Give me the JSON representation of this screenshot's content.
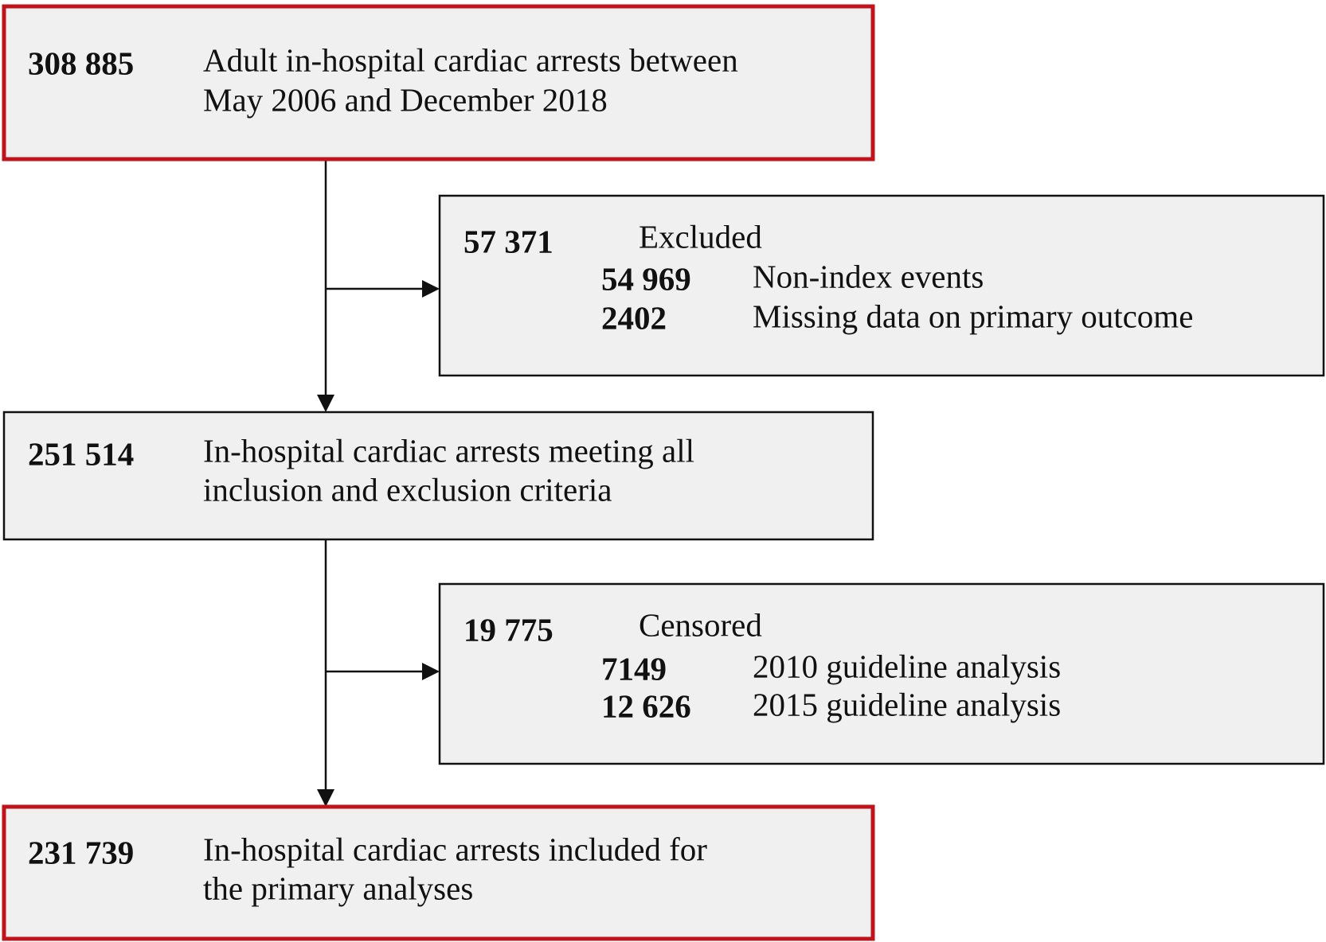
{
  "nodes": [
    {
      "count": "308 885",
      "label": [
        "Adult in-hospital cardiac arrests between",
        "May 2006 and December 2018"
      ]
    },
    {
      "count": "57 371",
      "label": "Excluded",
      "items": [
        {
          "count": "54 969",
          "label": "Non-index events"
        },
        {
          "count": "2402",
          "label": "Missing data on primary outcome"
        }
      ]
    },
    {
      "count": "251 514",
      "label": [
        "In-hospital cardiac arrests meeting all",
        "inclusion and exclusion criteria"
      ]
    },
    {
      "count": "19 775",
      "label": "Censored",
      "items": [
        {
          "count": "7149",
          "label": "2010 guideline analysis"
        },
        {
          "count": "12 626",
          "label": "2015 guideline analysis"
        }
      ]
    },
    {
      "count": "231 739",
      "label": [
        "In-hospital cardiac arrests included for",
        "the primary analyses"
      ]
    }
  ]
}
